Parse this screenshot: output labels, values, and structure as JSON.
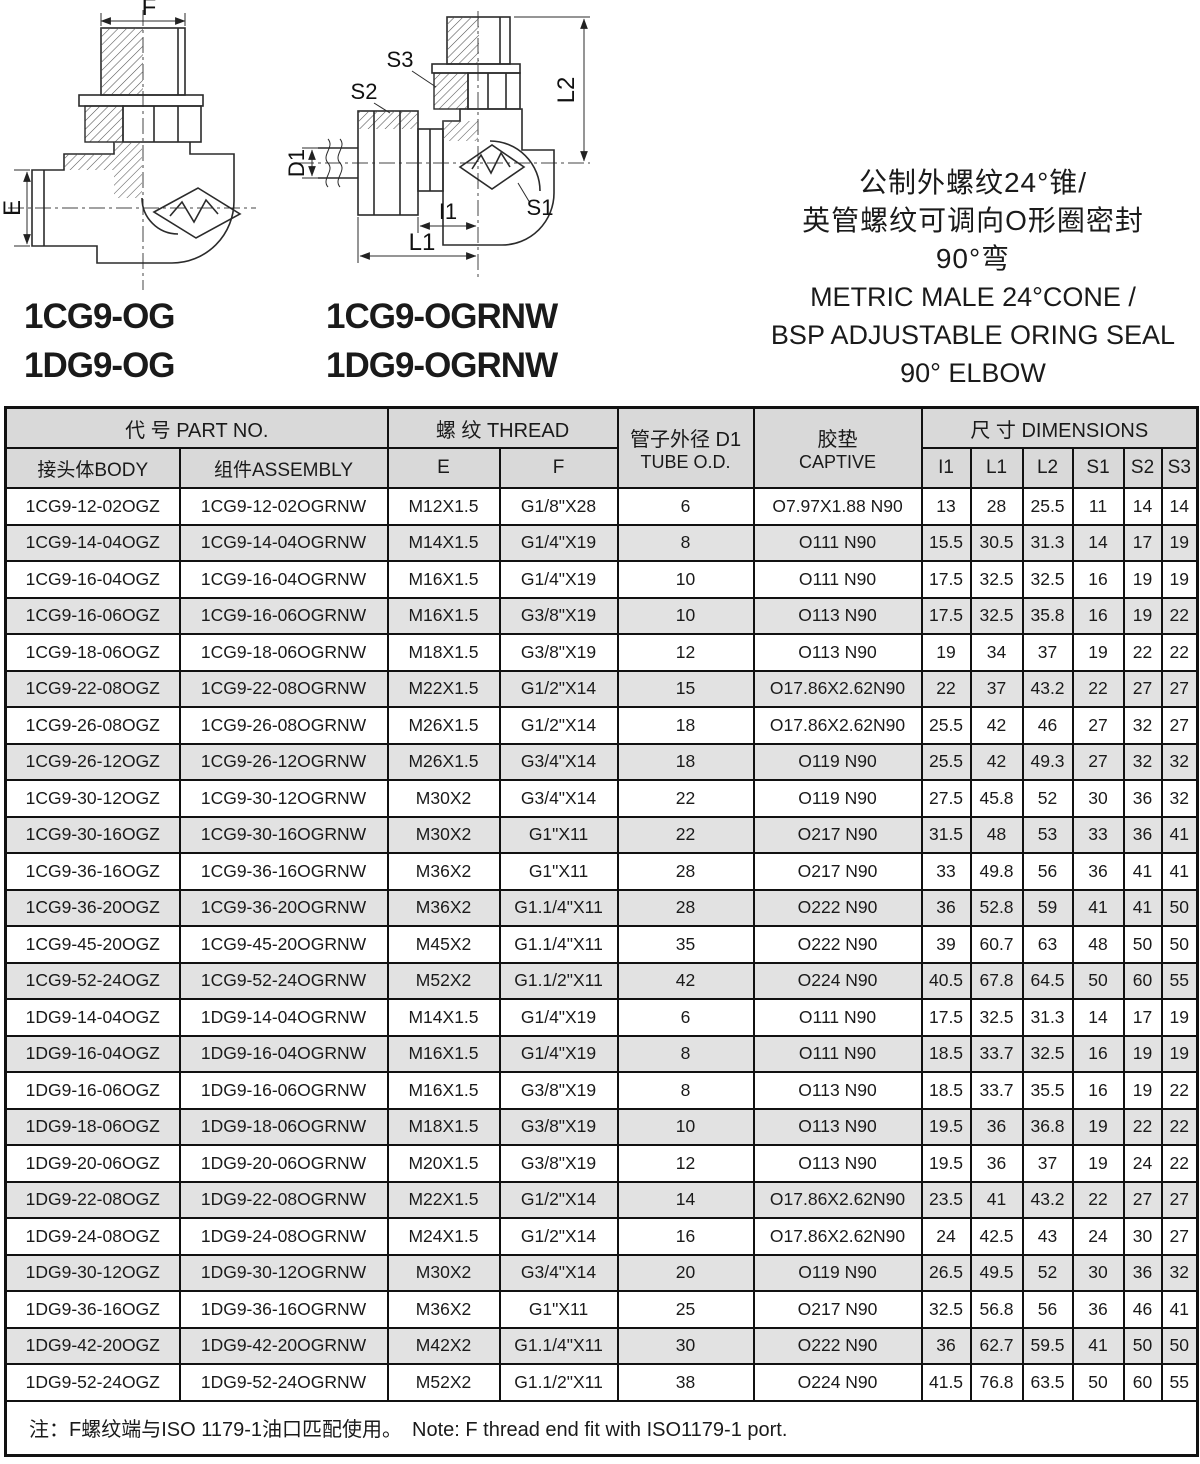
{
  "drawings": {
    "left": {
      "dim_labels": {
        "f": "F",
        "e": "E"
      },
      "part_numbers": [
        "1CG9-OG",
        "1DG9-OG"
      ]
    },
    "right": {
      "dim_labels": {
        "s3": "S3",
        "s2": "S2",
        "d1": "D1",
        "l2": "L2",
        "s1": "S1",
        "i1": "I1",
        "l1": "L1"
      },
      "part_numbers": [
        "1CG9-OGRNW",
        "1DG9-OGRNW"
      ]
    }
  },
  "title_block": {
    "zh": [
      "公制外螺纹24°锥/",
      "英管螺纹可调向O形圈密封",
      "90°弯"
    ],
    "en": [
      "METRIC MALE 24°CONE /",
      "BSP ADJUSTABLE ORING SEAL",
      "90° ELBOW"
    ]
  },
  "table": {
    "header": {
      "part_no": "代 号 PART NO.",
      "body": "接头体BODY",
      "assembly": "组件ASSEMBLY",
      "thread": "螺 纹 THREAD",
      "e": "E",
      "f": "F",
      "tube_od_line1": "管子外径 D1",
      "tube_od_line2": "TUBE O.D.",
      "captive_line1": "胶垫",
      "captive_line2": "CAPTIVE",
      "dimensions": "尺 寸  DIMENSIONS",
      "dim_cols": [
        "I1",
        "L1",
        "L2",
        "S1",
        "S2",
        "S3"
      ]
    },
    "rows": [
      [
        "1CG9-12-02OGZ",
        "1CG9-12-02OGRNW",
        "M12X1.5",
        "G1/8\"X28",
        "6",
        "O7.97X1.88 N90",
        "13",
        "28",
        "25.5",
        "11",
        "14",
        "14"
      ],
      [
        "1CG9-14-04OGZ",
        "1CG9-14-04OGRNW",
        "M14X1.5",
        "G1/4\"X19",
        "8",
        "O111 N90",
        "15.5",
        "30.5",
        "31.3",
        "14",
        "17",
        "19"
      ],
      [
        "1CG9-16-04OGZ",
        "1CG9-16-04OGRNW",
        "M16X1.5",
        "G1/4\"X19",
        "10",
        "O111 N90",
        "17.5",
        "32.5",
        "32.5",
        "16",
        "19",
        "19"
      ],
      [
        "1CG9-16-06OGZ",
        "1CG9-16-06OGRNW",
        "M16X1.5",
        "G3/8\"X19",
        "10",
        "O113 N90",
        "17.5",
        "32.5",
        "35.8",
        "16",
        "19",
        "22"
      ],
      [
        "1CG9-18-06OGZ",
        "1CG9-18-06OGRNW",
        "M18X1.5",
        "G3/8\"X19",
        "12",
        "O113 N90",
        "19",
        "34",
        "37",
        "19",
        "22",
        "22"
      ],
      [
        "1CG9-22-08OGZ",
        "1CG9-22-08OGRNW",
        "M22X1.5",
        "G1/2\"X14",
        "15",
        "O17.86X2.62N90",
        "22",
        "37",
        "43.2",
        "22",
        "27",
        "27"
      ],
      [
        "1CG9-26-08OGZ",
        "1CG9-26-08OGRNW",
        "M26X1.5",
        "G1/2\"X14",
        "18",
        "O17.86X2.62N90",
        "25.5",
        "42",
        "46",
        "27",
        "32",
        "27"
      ],
      [
        "1CG9-26-12OGZ",
        "1CG9-26-12OGRNW",
        "M26X1.5",
        "G3/4\"X14",
        "18",
        "O119 N90",
        "25.5",
        "42",
        "49.3",
        "27",
        "32",
        "32"
      ],
      [
        "1CG9-30-12OGZ",
        "1CG9-30-12OGRNW",
        "M30X2",
        "G3/4\"X14",
        "22",
        "O119 N90",
        "27.5",
        "45.8",
        "52",
        "30",
        "36",
        "32"
      ],
      [
        "1CG9-30-16OGZ",
        "1CG9-30-16OGRNW",
        "M30X2",
        "G1\"X11",
        "22",
        "O217 N90",
        "31.5",
        "48",
        "53",
        "33",
        "36",
        "41"
      ],
      [
        "1CG9-36-16OGZ",
        "1CG9-36-16OGRNW",
        "M36X2",
        "G1\"X11",
        "28",
        "O217 N90",
        "33",
        "49.8",
        "56",
        "36",
        "41",
        "41"
      ],
      [
        "1CG9-36-20OGZ",
        "1CG9-36-20OGRNW",
        "M36X2",
        "G1.1/4\"X11",
        "28",
        "O222 N90",
        "36",
        "52.8",
        "59",
        "41",
        "41",
        "50"
      ],
      [
        "1CG9-45-20OGZ",
        "1CG9-45-20OGRNW",
        "M45X2",
        "G1.1/4\"X11",
        "35",
        "O222 N90",
        "39",
        "60.7",
        "63",
        "48",
        "50",
        "50"
      ],
      [
        "1CG9-52-24OGZ",
        "1CG9-52-24OGRNW",
        "M52X2",
        "G1.1/2\"X11",
        "42",
        "O224 N90",
        "40.5",
        "67.8",
        "64.5",
        "50",
        "60",
        "55"
      ],
      [
        "1DG9-14-04OGZ",
        "1DG9-14-04OGRNW",
        "M14X1.5",
        "G1/4\"X19",
        "6",
        "O111 N90",
        "17.5",
        "32.5",
        "31.3",
        "14",
        "17",
        "19"
      ],
      [
        "1DG9-16-04OGZ",
        "1DG9-16-04OGRNW",
        "M16X1.5",
        "G1/4\"X19",
        "8",
        "O111 N90",
        "18.5",
        "33.7",
        "32.5",
        "16",
        "19",
        "19"
      ],
      [
        "1DG9-16-06OGZ",
        "1DG9-16-06OGRNW",
        "M16X1.5",
        "G3/8\"X19",
        "8",
        "O113 N90",
        "18.5",
        "33.7",
        "35.5",
        "16",
        "19",
        "22"
      ],
      [
        "1DG9-18-06OGZ",
        "1DG9-18-06OGRNW",
        "M18X1.5",
        "G3/8\"X19",
        "10",
        "O113 N90",
        "19.5",
        "36",
        "36.8",
        "19",
        "22",
        "22"
      ],
      [
        "1DG9-20-06OGZ",
        "1DG9-20-06OGRNW",
        "M20X1.5",
        "G3/8\"X19",
        "12",
        "O113 N90",
        "19.5",
        "36",
        "37",
        "19",
        "24",
        "22"
      ],
      [
        "1DG9-22-08OGZ",
        "1DG9-22-08OGRNW",
        "M22X1.5",
        "G1/2\"X14",
        "14",
        "O17.86X2.62N90",
        "23.5",
        "41",
        "43.2",
        "22",
        "27",
        "27"
      ],
      [
        "1DG9-24-08OGZ",
        "1DG9-24-08OGRNW",
        "M24X1.5",
        "G1/2\"X14",
        "16",
        "O17.86X2.62N90",
        "24",
        "42.5",
        "43",
        "24",
        "30",
        "27"
      ],
      [
        "1DG9-30-12OGZ",
        "1DG9-30-12OGRNW",
        "M30X2",
        "G3/4\"X14",
        "20",
        "O119 N90",
        "26.5",
        "49.5",
        "52",
        "30",
        "36",
        "32"
      ],
      [
        "1DG9-36-16OGZ",
        "1DG9-36-16OGRNW",
        "M36X2",
        "G1\"X11",
        "25",
        "O217 N90",
        "32.5",
        "56.8",
        "56",
        "36",
        "46",
        "41"
      ],
      [
        "1DG9-42-20OGZ",
        "1DG9-42-20OGRNW",
        "M42X2",
        "G1.1/4\"X11",
        "30",
        "O222 N90",
        "36",
        "62.7",
        "59.5",
        "41",
        "50",
        "50"
      ],
      [
        "1DG9-52-24OGZ",
        "1DG9-52-24OGRNW",
        "M52X2",
        "G1.1/2\"X11",
        "38",
        "O224 N90",
        "41.5",
        "76.8",
        "63.5",
        "50",
        "60",
        "55"
      ]
    ]
  },
  "footnote": "注：F螺纹端与ISO 1179-1油口匹配使用。　Note:  F thread end fit with ISO1179-1 port.",
  "colors": {
    "header_bg": "#d9d9d9",
    "shaded_row_bg": "#e2e2e2",
    "border": "#111111",
    "line_art": "#2b2b2b"
  }
}
